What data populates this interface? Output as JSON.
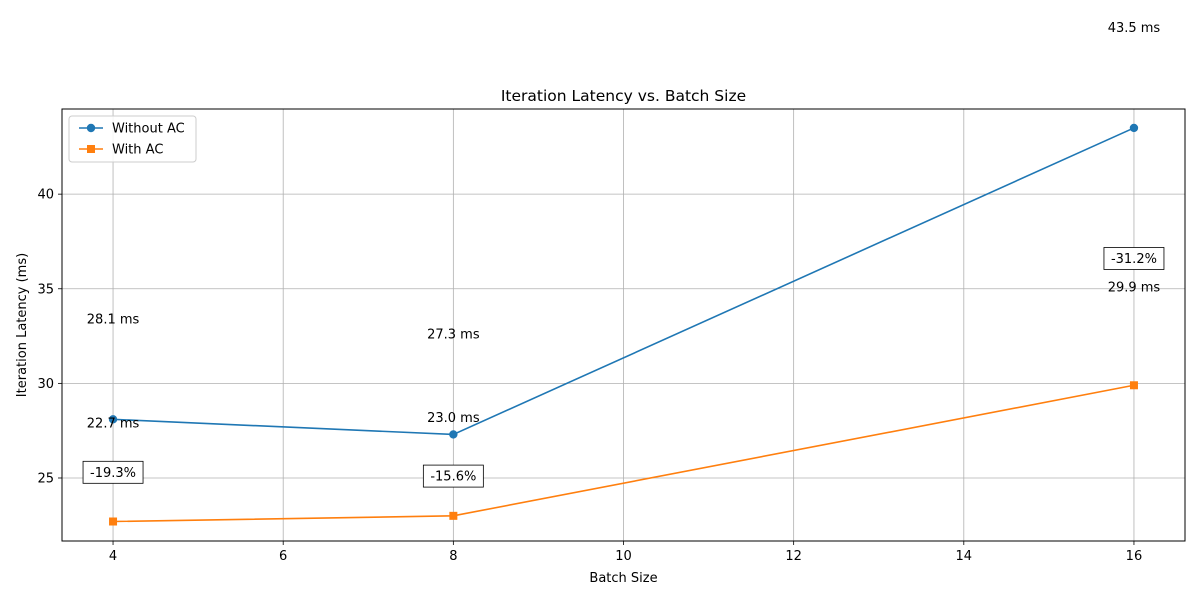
{
  "chart_data": {
    "type": "line",
    "title": "Iteration Latency vs. Batch Size",
    "xlabel": "Batch Size",
    "ylabel": "Iteration Latency (ms)",
    "x": [
      4,
      8,
      16
    ],
    "xlim": [
      3.4,
      16.6
    ],
    "ylim": [
      21.67,
      44.5
    ],
    "x_ticks": [
      4,
      6,
      8,
      10,
      12,
      14,
      16
    ],
    "y_ticks": [
      25,
      30,
      35,
      40
    ],
    "grid": true,
    "legend_position": "upper left",
    "series": [
      {
        "name": "Without AC",
        "values": [
          28.1,
          27.3,
          43.5
        ],
        "color": "#1f77b4",
        "marker": "circle"
      },
      {
        "name": "With AC",
        "values": [
          22.7,
          23.0,
          29.9
        ],
        "color": "#ff7f0e",
        "marker": "square"
      }
    ],
    "value_labels": [
      {
        "text": "28.1 ms",
        "x": 4,
        "y": 33.4
      },
      {
        "text": "27.3 ms",
        "x": 8,
        "y": 32.6
      },
      {
        "text": "43.5 ms",
        "x": 16,
        "y": 48.8
      },
      {
        "text": "22.7 ms",
        "x": 4,
        "y": 27.9
      },
      {
        "text": "23.0 ms",
        "x": 8,
        "y": 28.2
      },
      {
        "text": "29.9 ms",
        "x": 16,
        "y": 35.1
      }
    ],
    "percent_labels": [
      {
        "text": "-19.3%",
        "x": 4,
        "y": 25.3
      },
      {
        "text": "-15.6%",
        "x": 8,
        "y": 25.1
      },
      {
        "text": "-31.2%",
        "x": 16,
        "y": 36.6
      }
    ]
  }
}
